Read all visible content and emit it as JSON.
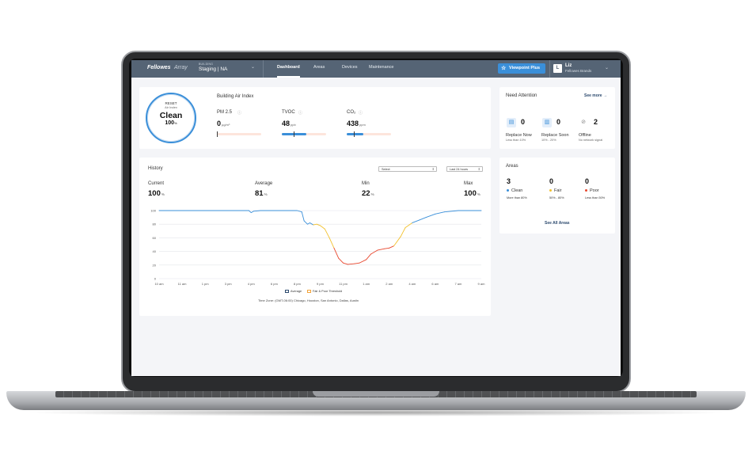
{
  "topbar": {
    "logo": "Fellowes",
    "logo_sub": "Array",
    "building_label": "BUILDING",
    "building_value": "Staging | NA",
    "tabs": [
      {
        "label": "Dashboard",
        "active": true
      },
      {
        "label": "Areas",
        "active": false
      },
      {
        "label": "Devices",
        "active": false
      },
      {
        "label": "Maintenance",
        "active": false
      }
    ],
    "viewpoint_button": "Viewpoint Plus",
    "user": {
      "initial": "L",
      "name": "Liz",
      "org": "Fellowes Brands"
    }
  },
  "air_index": {
    "title": "Building Air Index",
    "ring": {
      "top": "RESET",
      "sub": "Air Index",
      "status": "Clean",
      "value": "100",
      "unit": "%"
    },
    "metrics": [
      {
        "name": "PM 2.5",
        "value": "0",
        "unit": "µg/m³",
        "level": 0.0
      },
      {
        "name": "TVOC",
        "value": "48",
        "unit": "ppb",
        "level": 0.55
      },
      {
        "name": "CO₂",
        "value": "438",
        "unit": "ppm",
        "level": 0.38
      }
    ]
  },
  "attention": {
    "title": "Need Attention",
    "see_more": "See more →",
    "items": [
      {
        "icon": "filter-icon",
        "value": "0",
        "label": "Replace Now",
        "sub": "Less than 10%"
      },
      {
        "icon": "filter-soon-icon",
        "value": "0",
        "label": "Replace Soon",
        "sub": "10% - 20%"
      },
      {
        "icon": "offline-icon",
        "value": "2",
        "label": "Offline",
        "sub": "No network signal"
      }
    ]
  },
  "areas": {
    "title": "Areas",
    "see_all": "See All Areas",
    "items": [
      {
        "value": "3",
        "label": "Clean",
        "sub": "More than 80%",
        "color": "#3a8fd9"
      },
      {
        "value": "0",
        "label": "Fair",
        "sub": "50% - 80%",
        "color": "#f2c12e"
      },
      {
        "value": "0",
        "label": "Poor",
        "sub": "Less than 50%",
        "color": "#e8482f"
      }
    ]
  },
  "history": {
    "title": "History",
    "select_placeholder": "Select",
    "range_value": "Last 24 hours",
    "stats": [
      {
        "label": "Current",
        "value": "100",
        "unit": "%"
      },
      {
        "label": "Average",
        "value": "81",
        "unit": "%"
      },
      {
        "label": "Min",
        "value": "22",
        "unit": "%"
      },
      {
        "label": "Max",
        "value": "100",
        "unit": "%"
      }
    ],
    "legend": [
      {
        "label": "Average",
        "color": "#2c4a6e"
      },
      {
        "label": "Fair & Poor Threshold",
        "color": "#f2a33a"
      }
    ],
    "timezone": "Time Zone: (GMT-06:00) Chicago, Houston, San Antonio, Dallas, Austin"
  },
  "chart_data": {
    "type": "line",
    "x": [
      "10 am",
      "11 am",
      "1 pm",
      "3 pm",
      "4 pm",
      "6 pm",
      "8 pm",
      "9 pm",
      "11 pm",
      "1 am",
      "2 am",
      "4 am",
      "6 am",
      "7 am",
      "9 am"
    ],
    "yticks": [
      0,
      20,
      40,
      60,
      80,
      100
    ],
    "ylim": [
      0,
      100
    ],
    "series": [
      {
        "values": [
          [
            0,
            100
          ],
          [
            1,
            100
          ],
          [
            2,
            100
          ],
          [
            3,
            100
          ],
          [
            3.9,
            100
          ],
          [
            4.0,
            97
          ],
          [
            4.1,
            99
          ],
          [
            4.4,
            100
          ],
          [
            5,
            100
          ],
          [
            5.8,
            100
          ],
          [
            6.0,
            100
          ],
          [
            6.2,
            98
          ],
          [
            6.3,
            85
          ],
          [
            6.45,
            80
          ],
          [
            6.55,
            82
          ],
          [
            6.7,
            79
          ],
          [
            6.85,
            80
          ],
          [
            7.0,
            78
          ],
          [
            7.2,
            73
          ],
          [
            7.4,
            60
          ],
          [
            7.6,
            45
          ],
          [
            7.8,
            30
          ],
          [
            8.0,
            23
          ],
          [
            8.2,
            21
          ],
          [
            8.5,
            22
          ],
          [
            8.7,
            23
          ],
          [
            9.0,
            28
          ],
          [
            9.2,
            36
          ],
          [
            9.5,
            42
          ],
          [
            9.8,
            44
          ],
          [
            10.0,
            45
          ],
          [
            10.2,
            48
          ],
          [
            10.5,
            62
          ],
          [
            10.7,
            75
          ],
          [
            11.0,
            82
          ],
          [
            11.3,
            86
          ],
          [
            11.6,
            90
          ],
          [
            12.0,
            95
          ],
          [
            12.4,
            98
          ],
          [
            13.0,
            100
          ],
          [
            14.0,
            100
          ]
        ]
      }
    ],
    "colors": {
      "clean": "#3a8fd9",
      "fair": "#f2c12e",
      "poor": "#e8482f"
    }
  }
}
